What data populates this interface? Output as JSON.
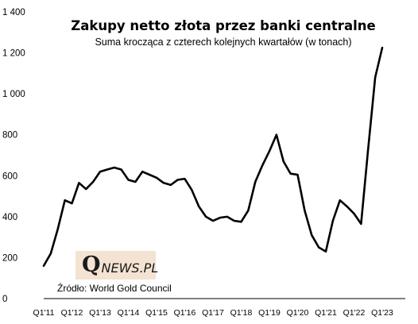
{
  "chart_data": {
    "type": "line",
    "title": "Zakupy netto złota przez banki centralne",
    "subtitle": "Suma krocząca z czterech kolejnych kwartałów (w tonach)",
    "source": "Źródło: World Gold Council",
    "ylim": [
      0,
      1400
    ],
    "yticks": [
      0,
      200,
      400,
      600,
      800,
      1000,
      1200,
      1400
    ],
    "ytick_labels": [
      "0",
      "200",
      "400",
      "600",
      "800",
      "1 000",
      "1 200",
      "1 400"
    ],
    "x_tick_labels": [
      "Q1'11",
      "Q1'12",
      "Q1'13",
      "Q1'14",
      "Q1'15",
      "Q1'16",
      "Q1'17",
      "Q1'18",
      "Q1'19",
      "Q1'20",
      "Q1'21",
      "Q1'22",
      "Q1'23"
    ],
    "grid": false,
    "color": "#000000",
    "series": [
      {
        "values": [
          160,
          220,
          340,
          480,
          465,
          565,
          535,
          570,
          620,
          630,
          640,
          630,
          580,
          570,
          620,
          605,
          590,
          565,
          555,
          580,
          585,
          530,
          450,
          400,
          380,
          395,
          400,
          380,
          375,
          430,
          570,
          650,
          720,
          800,
          670,
          610,
          605,
          430,
          310,
          250,
          230,
          380,
          480,
          450,
          415,
          365,
          730,
          1080,
          1225
        ]
      }
    ]
  },
  "logo": {
    "mark": "Q",
    "wordmark": "NEWS.PL"
  }
}
